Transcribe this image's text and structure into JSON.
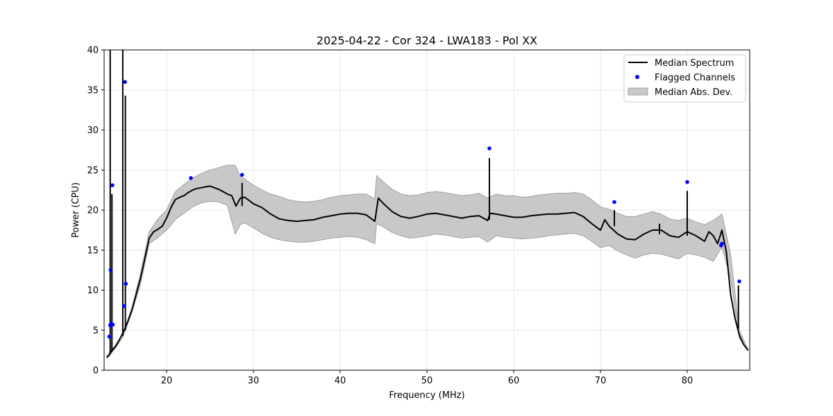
{
  "chart_data": {
    "type": "line",
    "title": "2025-04-22 - Cor 324 - LWA183 - Pol XX",
    "xlabel": "Frequency (MHz)",
    "ylabel": "Power (CPU)",
    "xlim": [
      12.8,
      87.2
    ],
    "ylim": [
      0,
      40
    ],
    "xticks": [
      20,
      30,
      40,
      50,
      60,
      70,
      80
    ],
    "yticks": [
      0,
      5,
      10,
      15,
      20,
      25,
      30,
      35,
      40
    ],
    "xtick_labels": [
      "20",
      "30",
      "40",
      "50",
      "60",
      "70",
      "80"
    ],
    "ytick_labels": [
      "0",
      "5",
      "10",
      "15",
      "20",
      "25",
      "30",
      "35",
      "40"
    ],
    "grid": true,
    "legend_position": "top-right",
    "legend": [
      "Median Spectrum",
      "Flagged Channels",
      "Median Abs. Dev."
    ],
    "colors": {
      "median": "#000000",
      "flagged": "#0000ff",
      "mad_fill": "#c8c8c8",
      "mad_edge": "#a0a0a0",
      "grid": "#e6e6e6"
    },
    "series": [
      {
        "name": "Median Spectrum",
        "x": [
          13.1,
          13.4,
          13.6,
          13.8,
          14.0,
          14.2,
          14.4,
          14.6,
          14.8,
          15.2,
          15.6,
          16.0,
          16.5,
          17.0,
          17.5,
          18.0,
          18.5,
          19.0,
          19.5,
          20.0,
          20.5,
          21.0,
          21.5,
          22.0,
          22.5,
          23.0,
          23.5,
          24.0,
          24.5,
          25.0,
          25.5,
          26.0,
          26.5,
          27.0,
          27.5,
          28.0,
          28.5,
          29.0,
          29.5,
          30.0,
          31.0,
          32.0,
          33.0,
          34.0,
          35.0,
          36.0,
          37.0,
          38.0,
          39.0,
          40.0,
          41.0,
          42.0,
          43.0,
          44.0,
          44.4,
          45.0,
          46.0,
          47.0,
          48.0,
          49.0,
          50.0,
          51.0,
          52.0,
          53.0,
          54.0,
          55.0,
          56.0,
          57.0,
          57.3,
          58.0,
          59.0,
          60.0,
          61.0,
          62.0,
          63.0,
          64.0,
          65.0,
          66.0,
          67.0,
          68.0,
          69.0,
          70.0,
          70.5,
          71.0,
          72.0,
          73.0,
          74.0,
          75.0,
          76.0,
          77.0,
          78.0,
          79.0,
          80.0,
          81.0,
          82.0,
          82.5,
          83.0,
          83.5,
          84.0,
          84.5,
          85.0,
          85.5,
          86.0,
          86.5,
          87.0
        ],
        "values": [
          1.6,
          1.9,
          2.3,
          2.6,
          2.8,
          3.1,
          3.5,
          3.9,
          4.3,
          5.2,
          6.3,
          7.5,
          9.5,
          11.5,
          14.0,
          16.5,
          17.3,
          17.6,
          18.0,
          19.0,
          20.3,
          21.3,
          21.6,
          21.8,
          22.2,
          22.5,
          22.7,
          22.8,
          22.9,
          23.0,
          22.8,
          22.6,
          22.3,
          22.0,
          21.8,
          20.5,
          21.5,
          21.6,
          21.2,
          20.8,
          20.3,
          19.5,
          18.9,
          18.7,
          18.6,
          18.7,
          18.8,
          19.1,
          19.3,
          19.5,
          19.6,
          19.6,
          19.4,
          18.6,
          21.5,
          20.8,
          19.8,
          19.2,
          19.0,
          19.2,
          19.5,
          19.6,
          19.4,
          19.2,
          19.0,
          19.2,
          19.3,
          18.7,
          19.6,
          19.5,
          19.3,
          19.1,
          19.1,
          19.3,
          19.4,
          19.5,
          19.5,
          19.6,
          19.7,
          19.2,
          18.3,
          17.5,
          18.8,
          18.0,
          17.0,
          16.4,
          16.3,
          17.0,
          17.5,
          17.5,
          16.8,
          16.6,
          17.3,
          16.8,
          16.1,
          17.3,
          16.8,
          15.8,
          17.5,
          14.8,
          9.5,
          6.5,
          4.4,
          3.2,
          2.5
        ]
      },
      {
        "name": "Median Abs. Dev.",
        "x": [
          13.1,
          14.0,
          15.0,
          16.0,
          17.0,
          18.0,
          19.0,
          20.0,
          21.0,
          22.0,
          23.0,
          24.0,
          25.0,
          26.0,
          27.0,
          27.9,
          28.5,
          29.0,
          30.0,
          31.0,
          32.0,
          33.0,
          34.0,
          35.0,
          36.0,
          37.0,
          38.0,
          39.0,
          40.0,
          41.0,
          42.0,
          43.0,
          44.0,
          44.2,
          45.0,
          46.0,
          47.0,
          48.0,
          49.0,
          50.0,
          51.0,
          52.0,
          53.0,
          54.0,
          55.0,
          56.0,
          57.0,
          58.0,
          59.0,
          60.0,
          61.0,
          62.0,
          63.0,
          64.0,
          65.0,
          66.0,
          67.0,
          68.0,
          69.0,
          70.0,
          71.0,
          72.0,
          73.0,
          74.0,
          75.0,
          76.0,
          77.0,
          78.0,
          79.0,
          80.0,
          81.0,
          82.0,
          83.0,
          84.0,
          85.0,
          86.0,
          87.0
        ],
        "upper": [
          1.8,
          3.0,
          4.6,
          7.8,
          12.2,
          17.3,
          18.9,
          20.0,
          22.3,
          23.2,
          24.0,
          24.6,
          25.0,
          25.3,
          25.6,
          25.6,
          24.2,
          23.9,
          23.1,
          22.5,
          22.0,
          21.7,
          21.3,
          21.1,
          21.0,
          21.1,
          21.3,
          21.6,
          21.8,
          21.9,
          22.0,
          22.0,
          21.4,
          24.3,
          23.5,
          22.6,
          22.0,
          21.8,
          21.9,
          22.2,
          22.3,
          22.2,
          22.0,
          21.8,
          21.9,
          22.1,
          21.5,
          22.0,
          21.8,
          21.8,
          21.6,
          21.7,
          21.9,
          22.0,
          22.1,
          22.1,
          22.2,
          22.0,
          21.3,
          20.4,
          20.1,
          19.6,
          19.2,
          19.2,
          19.5,
          19.8,
          19.5,
          18.9,
          18.7,
          19.0,
          18.5,
          18.2,
          18.7,
          19.5,
          14.5,
          5.0,
          2.6
        ],
        "lower": [
          1.5,
          2.6,
          4.2,
          7.2,
          10.8,
          15.8,
          16.6,
          17.5,
          18.8,
          19.6,
          20.4,
          20.9,
          21.1,
          21.0,
          20.6,
          17.0,
          18.2,
          18.4,
          17.8,
          17.1,
          16.6,
          16.3,
          16.1,
          16.0,
          16.0,
          16.1,
          16.3,
          16.5,
          16.6,
          16.7,
          16.6,
          16.3,
          15.8,
          18.3,
          17.9,
          17.2,
          16.8,
          16.5,
          16.6,
          16.8,
          17.0,
          16.9,
          16.7,
          16.5,
          16.6,
          16.7,
          16.0,
          16.8,
          16.6,
          16.5,
          16.4,
          16.5,
          16.6,
          16.8,
          16.9,
          17.0,
          17.1,
          16.8,
          16.1,
          15.3,
          15.6,
          14.9,
          14.4,
          14.0,
          14.4,
          14.6,
          14.5,
          14.2,
          13.9,
          14.6,
          14.4,
          14.1,
          13.6,
          15.4,
          11.5,
          4.0,
          2.4
        ]
      }
    ],
    "spikes": [
      {
        "x": 13.5,
        "base": 2.0,
        "peak": 40
      },
      {
        "x": 13.7,
        "base": 2.3,
        "peak": 22.0
      },
      {
        "x": 14.95,
        "base": 4.3,
        "peak": 40
      },
      {
        "x": 15.25,
        "base": 5.0,
        "peak": 34.3
      },
      {
        "x": 28.7,
        "base": 20.5,
        "peak": 23.4
      },
      {
        "x": 57.2,
        "base": 18.8,
        "peak": 26.5
      },
      {
        "x": 71.6,
        "base": 18.0,
        "peak": 20.0
      },
      {
        "x": 76.8,
        "base": 17.0,
        "peak": 18.3
      },
      {
        "x": 80.0,
        "base": 16.8,
        "peak": 22.4
      },
      {
        "x": 85.9,
        "base": 5.2,
        "peak": 10.6
      }
    ],
    "flagged_channels": {
      "x": [
        13.4,
        13.5,
        13.55,
        13.6,
        13.75,
        13.8,
        15.1,
        15.2,
        15.3,
        22.8,
        28.7,
        57.2,
        71.6,
        80.0,
        83.9,
        84.0,
        86.0
      ],
      "y": [
        4.2,
        5.6,
        12.5,
        5.8,
        23.1,
        5.7,
        8.0,
        36.0,
        10.8,
        24.0,
        24.4,
        27.7,
        21.0,
        23.5,
        15.6,
        15.8,
        11.1
      ]
    }
  }
}
